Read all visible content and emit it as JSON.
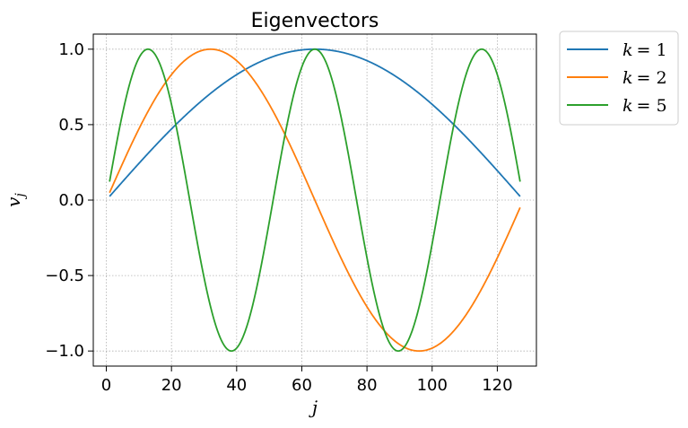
{
  "chart_data": {
    "type": "line",
    "title": "Eigenvectors",
    "xlabel": "j",
    "ylabel": "v",
    "ylabel_subscript": "j",
    "xlim": [
      -4,
      132
    ],
    "ylim": [
      -1.1,
      1.1
    ],
    "xticks": [
      0,
      20,
      40,
      60,
      80,
      100,
      120
    ],
    "xtick_labels": [
      "0",
      "20",
      "40",
      "60",
      "80",
      "100",
      "120"
    ],
    "yticks": [
      1.0,
      0.5,
      0.0,
      -0.5,
      -1.0
    ],
    "ytick_labels": [
      "1.0",
      "0.5",
      "0.0",
      "−0.5",
      "−1.0"
    ],
    "grid": true,
    "grid_style": "dotted",
    "legend_position": "outside-top-right",
    "x_range": [
      1,
      127
    ],
    "series": [
      {
        "name": "k = 1",
        "k": 1,
        "formula": "sin(k*pi*j/128)",
        "color": "#1f77b4"
      },
      {
        "name": "k = 2",
        "k": 2,
        "formula": "sin(k*pi*j/128)",
        "color": "#ff7f0e"
      },
      {
        "name": "k = 5",
        "k": 5,
        "formula": "sin(k*pi*j/128)",
        "color": "#2ca02c"
      }
    ],
    "legend": {
      "entries": [
        {
          "label_var": "k",
          "label_eq": "= 1"
        },
        {
          "label_var": "k",
          "label_eq": "= 2"
        },
        {
          "label_var": "k",
          "label_eq": "= 5"
        }
      ]
    }
  }
}
